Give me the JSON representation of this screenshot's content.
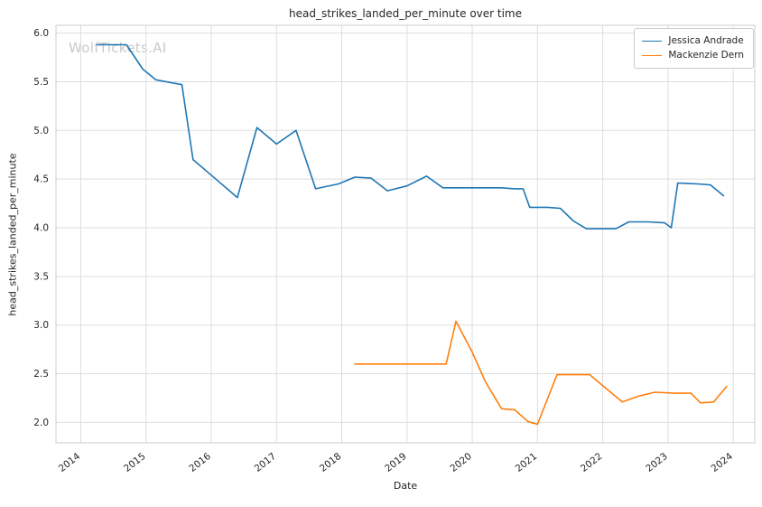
{
  "watermark": "WolfTickets.AI",
  "chart_data": {
    "type": "line",
    "title": "head_strikes_landed_per_minute over time",
    "xlabel": "Date",
    "ylabel": "head_strikes_landed_per_minute",
    "xlim": [
      2013.62,
      2024.33
    ],
    "ylim": [
      1.79,
      6.08
    ],
    "xticks": [
      2014,
      2015,
      2016,
      2017,
      2018,
      2019,
      2020,
      2021,
      2022,
      2023,
      2024
    ],
    "yticks": [
      2.0,
      2.5,
      3.0,
      3.5,
      4.0,
      4.5,
      5.0,
      5.5,
      6.0
    ],
    "grid": true,
    "legend_position": "top-right",
    "grid_color": "#dddddd",
    "series": [
      {
        "name": "Jessica Andrade",
        "color": "#1f77b4",
        "points": [
          [
            2014.25,
            5.88
          ],
          [
            2014.7,
            5.88
          ],
          [
            2014.95,
            5.63
          ],
          [
            2015.15,
            5.52
          ],
          [
            2015.55,
            5.47
          ],
          [
            2015.72,
            4.7
          ],
          [
            2016.0,
            4.54
          ],
          [
            2016.4,
            4.31
          ],
          [
            2016.7,
            5.03
          ],
          [
            2017.0,
            4.86
          ],
          [
            2017.3,
            5.0
          ],
          [
            2017.6,
            4.4
          ],
          [
            2017.95,
            4.45
          ],
          [
            2018.2,
            4.52
          ],
          [
            2018.45,
            4.51
          ],
          [
            2018.7,
            4.38
          ],
          [
            2019.0,
            4.43
          ],
          [
            2019.3,
            4.53
          ],
          [
            2019.55,
            4.41
          ],
          [
            2019.8,
            4.41
          ],
          [
            2020.1,
            4.41
          ],
          [
            2020.45,
            4.41
          ],
          [
            2020.65,
            4.4
          ],
          [
            2020.78,
            4.4
          ],
          [
            2020.88,
            4.21
          ],
          [
            2021.15,
            4.21
          ],
          [
            2021.35,
            4.2
          ],
          [
            2021.55,
            4.07
          ],
          [
            2021.75,
            3.99
          ],
          [
            2022.0,
            3.99
          ],
          [
            2022.2,
            3.99
          ],
          [
            2022.4,
            4.06
          ],
          [
            2022.7,
            4.06
          ],
          [
            2022.95,
            4.05
          ],
          [
            2023.05,
            4.0
          ],
          [
            2023.15,
            4.46
          ],
          [
            2023.45,
            4.45
          ],
          [
            2023.65,
            4.44
          ],
          [
            2023.85,
            4.33
          ]
        ]
      },
      {
        "name": "Mackenzie Dern",
        "color": "#ff7f0e",
        "points": [
          [
            2018.2,
            2.6
          ],
          [
            2018.7,
            2.6
          ],
          [
            2019.1,
            2.6
          ],
          [
            2019.45,
            2.6
          ],
          [
            2019.6,
            2.6
          ],
          [
            2019.75,
            3.04
          ],
          [
            2020.0,
            2.72
          ],
          [
            2020.2,
            2.42
          ],
          [
            2020.45,
            2.14
          ],
          [
            2020.65,
            2.13
          ],
          [
            2020.85,
            2.01
          ],
          [
            2021.0,
            1.98
          ],
          [
            2021.3,
            2.49
          ],
          [
            2021.6,
            2.49
          ],
          [
            2021.8,
            2.49
          ],
          [
            2022.05,
            2.35
          ],
          [
            2022.3,
            2.21
          ],
          [
            2022.55,
            2.27
          ],
          [
            2022.8,
            2.31
          ],
          [
            2023.1,
            2.3
          ],
          [
            2023.35,
            2.3
          ],
          [
            2023.5,
            2.2
          ],
          [
            2023.7,
            2.21
          ],
          [
            2023.9,
            2.37
          ]
        ]
      }
    ]
  }
}
